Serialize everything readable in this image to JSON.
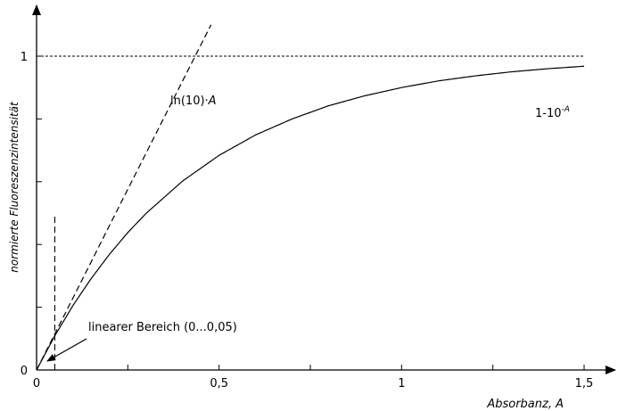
{
  "chart_data": {
    "type": "line",
    "xlabel": "Absorbanz, A",
    "ylabel": "normierte Fluoreszenzintensität",
    "xlim": [
      0,
      1.5
    ],
    "ylim": [
      0,
      1
    ],
    "x_ticks": [
      0,
      0.25,
      0.5,
      0.75,
      1,
      1.25,
      1.5
    ],
    "x_tick_labels": [
      "0",
      "",
      "0,5",
      "",
      "1",
      "",
      "1,5"
    ],
    "y_ticks": [
      0,
      0.2,
      0.4,
      0.6,
      0.8,
      1
    ],
    "y_tick_labels": [
      "0",
      "",
      "",
      "",
      "",
      "1"
    ],
    "series": [
      {
        "name": "1-10^-A",
        "style": "solid",
        "x": [
          0,
          0.05,
          0.1,
          0.15,
          0.2,
          0.25,
          0.3,
          0.4,
          0.5,
          0.6,
          0.7,
          0.8,
          0.9,
          1.0,
          1.1,
          1.2,
          1.3,
          1.4,
          1.5
        ],
        "y": [
          0,
          0.109,
          0.206,
          0.292,
          0.369,
          0.438,
          0.499,
          0.602,
          0.684,
          0.749,
          0.8,
          0.842,
          0.874,
          0.9,
          0.921,
          0.937,
          0.95,
          0.96,
          0.968
        ]
      },
      {
        "name": "ln(10)·A",
        "style": "dashed",
        "x": [
          0,
          0.05,
          0.1,
          0.2,
          0.3,
          0.4,
          0.478
        ],
        "y": [
          0,
          0.115,
          0.23,
          0.461,
          0.691,
          0.921,
          1.1
        ]
      }
    ],
    "reference_lines": [
      {
        "orientation": "horizontal",
        "value": 1,
        "style": "dotted"
      },
      {
        "orientation": "vertical",
        "value": 0.05,
        "style": "dashed",
        "y_range": [
          0,
          0.5
        ]
      }
    ],
    "annotations": {
      "curve_label_exp": "1-10",
      "curve_label_exp_super": "-A",
      "curve_label_lin": "ln(10)·",
      "curve_label_lin_var": "A",
      "linear_region": "linearer Bereich (0...0,05)"
    },
    "grid": false
  }
}
